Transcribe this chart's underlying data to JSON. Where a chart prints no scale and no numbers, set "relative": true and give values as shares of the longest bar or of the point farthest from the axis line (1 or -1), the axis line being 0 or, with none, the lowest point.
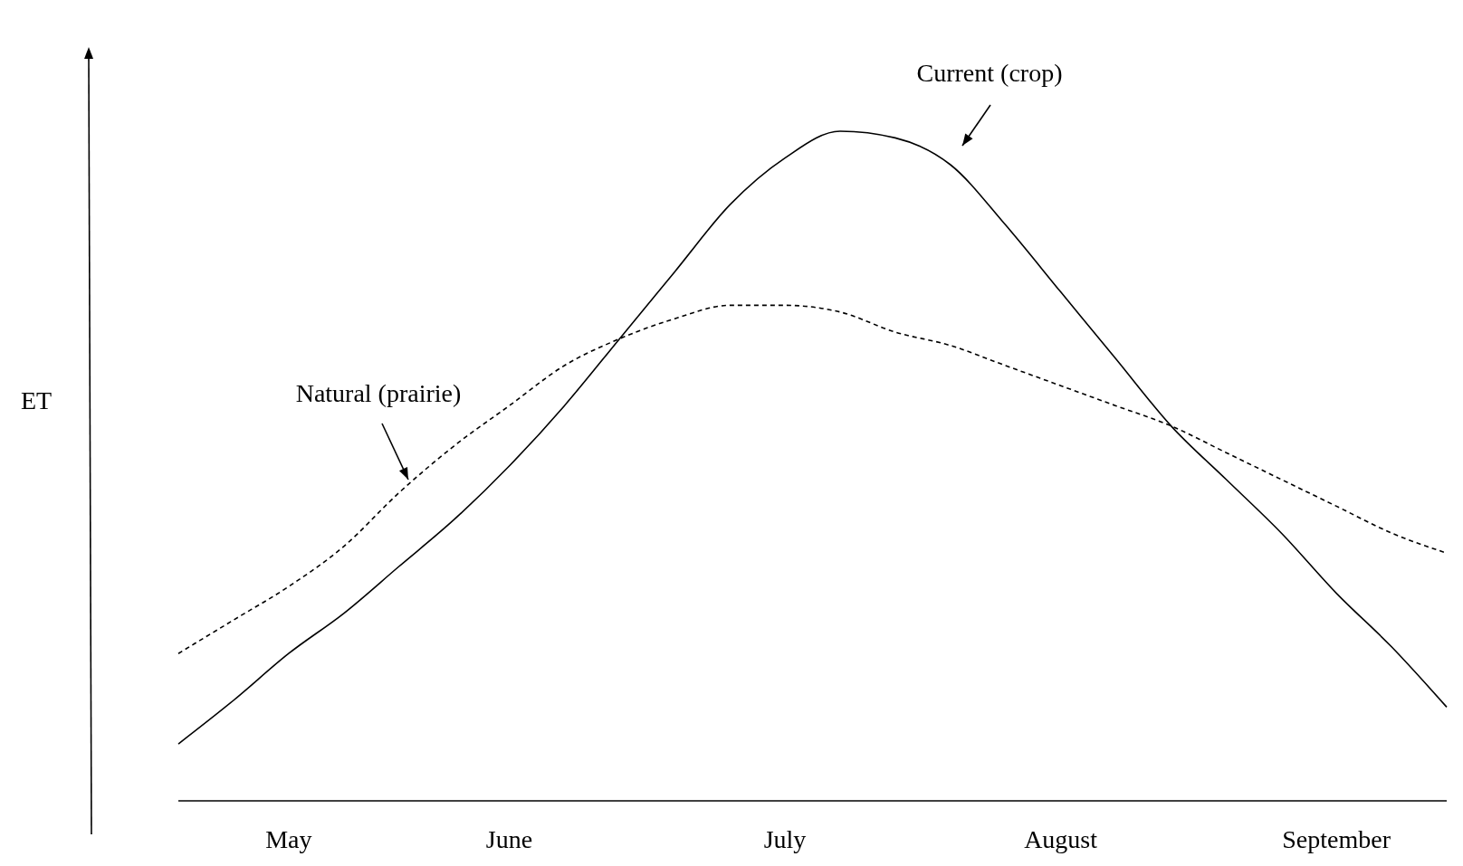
{
  "chart_data": {
    "type": "line",
    "ylabel": "ET",
    "relative": true,
    "tick_labels": "x",
    "marker": "none",
    "categories": [
      null,
      null,
      "May",
      null,
      null,
      null,
      "June",
      null,
      null,
      null,
      null,
      "July",
      null,
      null,
      null,
      null,
      "August",
      null,
      null,
      null,
      null,
      "September",
      null,
      null
    ],
    "series": [
      {
        "name": "Current (crop)",
        "color": "#000000",
        "line_style": "solid",
        "values": [
          0.085,
          0.15,
          0.22,
          0.28,
          0.35,
          0.42,
          0.5,
          0.59,
          0.69,
          0.79,
          0.89,
          0.96,
          1,
          0.99,
          0.95,
          0.86,
          0.76,
          0.66,
          0.56,
          0.48,
          0.4,
          0.31,
          0.23,
          0.14
        ]
      },
      {
        "name": "Natural (prairie)",
        "color": "#000000",
        "line_style": "dashed",
        "values": [
          0.22,
          0.27,
          0.32,
          0.38,
          0.46,
          0.53,
          0.59,
          0.65,
          0.69,
          0.72,
          0.74,
          0.74,
          0.73,
          0.7,
          0.68,
          0.65,
          0.62,
          0.59,
          0.56,
          0.52,
          0.48,
          0.44,
          0.4,
          0.37
        ]
      }
    ]
  }
}
